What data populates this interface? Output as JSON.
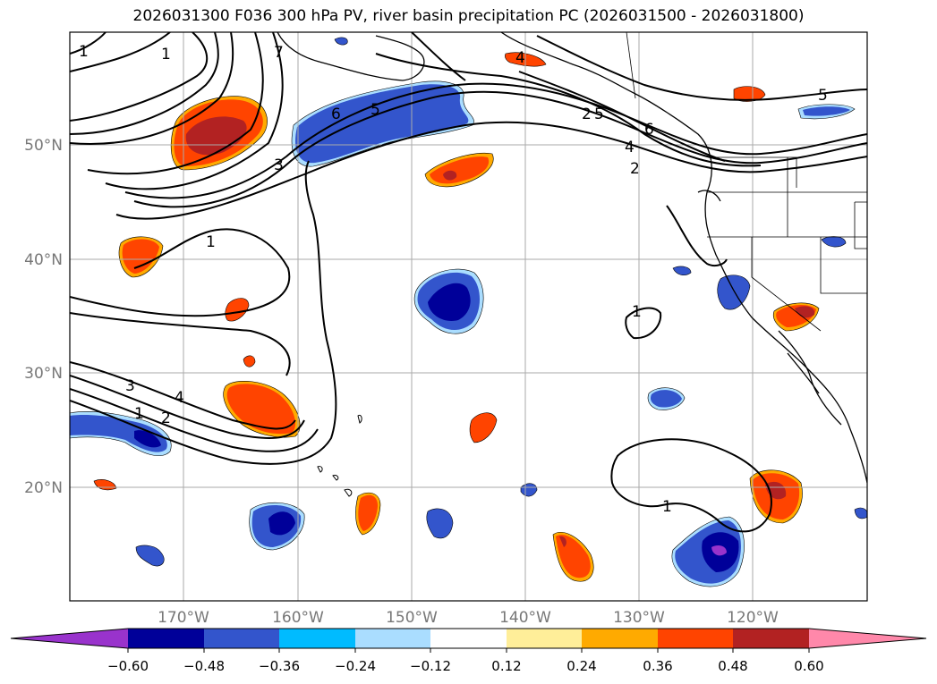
{
  "title": "2026031300 F036 300 hPa PV, river basin precipitation PC (2026031500 - 2026031800)",
  "map": {
    "lon_labels": [
      "170°W",
      "160°W",
      "150°W",
      "140°W",
      "130°W",
      "120°W"
    ],
    "lat_labels": [
      "50°N",
      "40°N",
      "30°N",
      "20°N"
    ],
    "contour_labels": [
      "1",
      "1",
      "7",
      "6",
      "5",
      "3",
      "1",
      "4",
      "3",
      "2",
      "4",
      "1",
      "2",
      "5",
      "6",
      "4",
      "2",
      "1",
      "1",
      "5"
    ]
  },
  "colorbar": {
    "ticks": [
      "−0.60",
      "−0.48",
      "−0.36",
      "−0.24",
      "−0.12",
      "0.12",
      "0.24",
      "0.36",
      "0.48",
      "0.60"
    ],
    "colors": [
      "#9933cc",
      "#000099",
      "#3355cc",
      "#00bbff",
      "#aaddff",
      "#ffffff",
      "#ffee99",
      "#ffaa00",
      "#ff4400",
      "#b22222",
      "#ff88aa"
    ]
  },
  "fill_colors": {
    "neg1": "#aaddff",
    "neg2": "#00bbff",
    "neg3": "#3355cc",
    "neg4": "#000099",
    "neg5": "#9933cc",
    "pos1": "#ffee99",
    "pos2": "#ffaa00",
    "pos3": "#ff4400",
    "pos4": "#b22222",
    "pos5": "#ff88aa"
  }
}
